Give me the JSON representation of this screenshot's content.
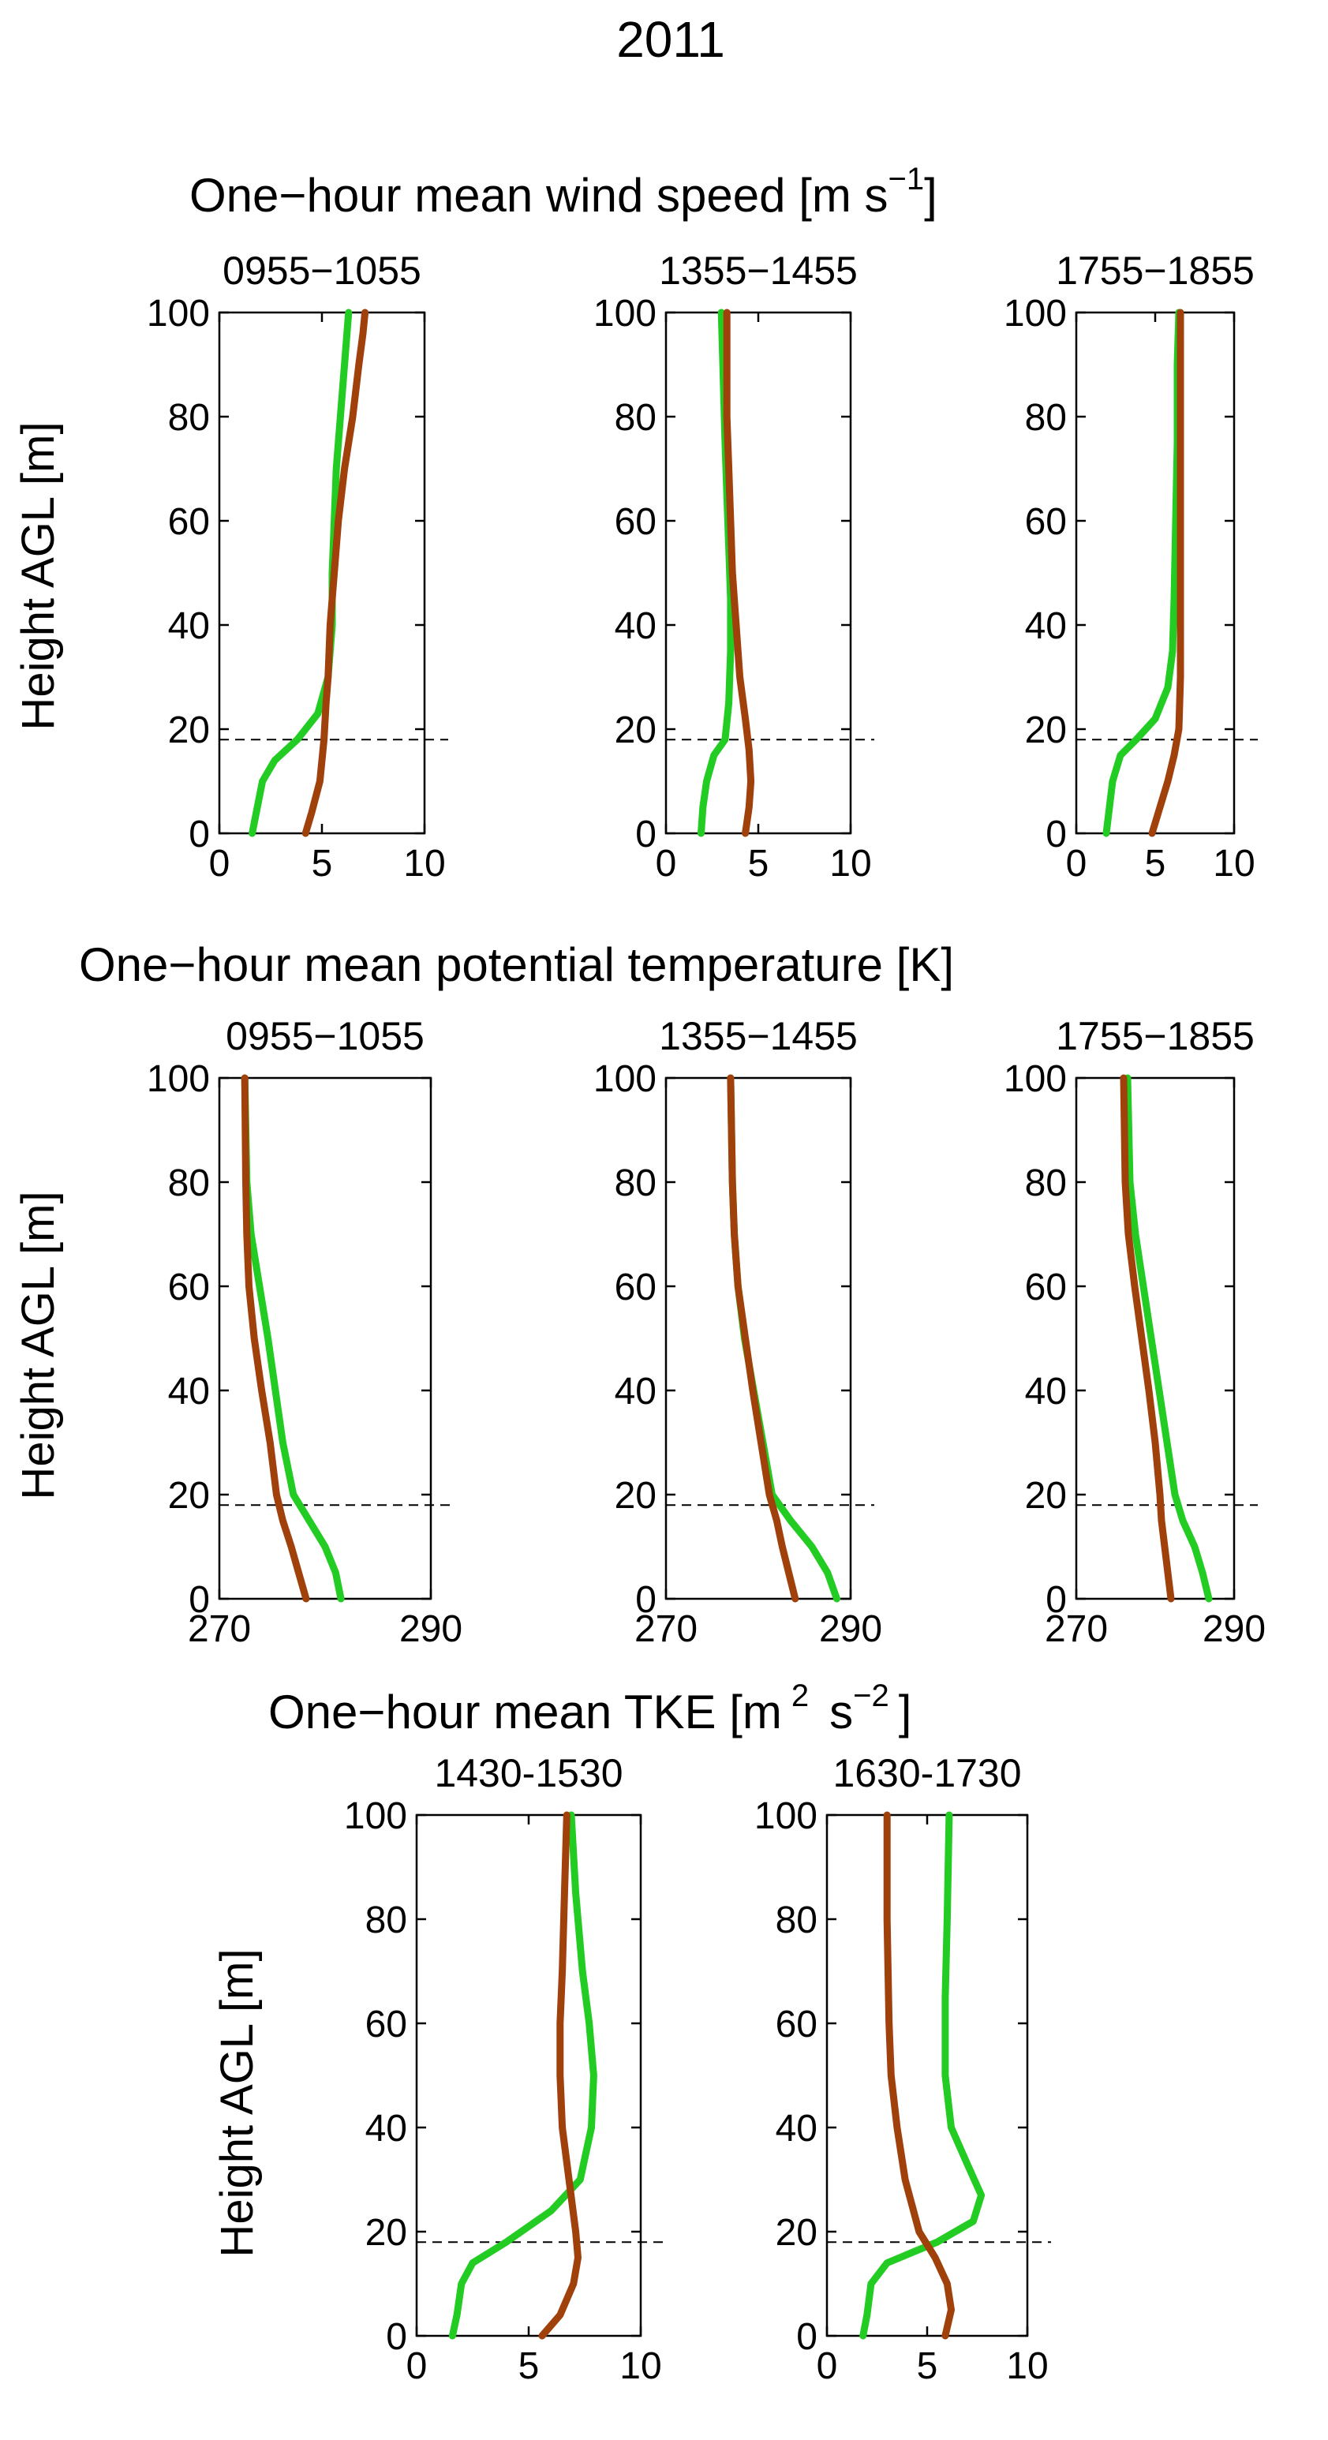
{
  "figure_title": "2011",
  "rows": [
    {
      "title": "One−hour mean wind speed",
      "unit_base": "[m s",
      "unit_exp": "−1",
      "unit_close": "]"
    },
    {
      "title": "One−hour mean potential temperature [K]"
    },
    {
      "title": "One−hour mean TKE",
      "unit_base": "[m",
      "unit_exp1": "2",
      "unit_mid": "s",
      "unit_exp2": "−2",
      "unit_close": "]"
    }
  ],
  "ylabel": "Height AGL [m]",
  "colors": {
    "green": "#22cc22",
    "brown": "#a0400a",
    "axis": "#000000",
    "ref_line": "#000000"
  },
  "chart_data": [
    {
      "type": "line",
      "row": 0,
      "title": "0955−1055",
      "xlim": [
        0,
        10
      ],
      "ylim": [
        0,
        100
      ],
      "xticks": [
        0,
        5,
        10
      ],
      "yticks": [
        0,
        20,
        40,
        60,
        80,
        100
      ],
      "xlabel": "",
      "ylabel": "Height AGL [m]",
      "ref_y": 18,
      "series": [
        {
          "name": "green",
          "color": "#22cc22",
          "x": [
            1.6,
            1.8,
            2.1,
            2.7,
            3.8,
            4.8,
            5.3,
            5.5,
            5.5,
            5.6,
            5.7,
            5.9,
            6.1,
            6.3
          ],
          "y": [
            0,
            4,
            10,
            14,
            18,
            23,
            30,
            40,
            50,
            60,
            70,
            80,
            90,
            100
          ]
        },
        {
          "name": "brown",
          "color": "#a0400a",
          "x": [
            4.2,
            4.5,
            4.9,
            5.1,
            5.2,
            5.3,
            5.4,
            5.6,
            5.8,
            6.1,
            6.5,
            6.8,
            7.0,
            7.1
          ],
          "y": [
            0,
            4,
            10,
            18,
            25,
            30,
            40,
            50,
            60,
            70,
            80,
            90,
            96,
            100
          ]
        }
      ]
    },
    {
      "type": "line",
      "row": 0,
      "title": "1355−1455",
      "xlim": [
        0,
        10
      ],
      "ylim": [
        0,
        100
      ],
      "xticks": [
        0,
        5,
        10
      ],
      "yticks": [
        0,
        20,
        40,
        60,
        80,
        100
      ],
      "xlabel": "",
      "ylabel": "",
      "ref_y": 18,
      "series": [
        {
          "name": "green",
          "color": "#22cc22",
          "x": [
            1.9,
            2.0,
            2.2,
            2.6,
            3.2,
            3.4,
            3.5,
            3.5,
            3.4,
            3.3,
            3.2,
            3.1,
            3.0
          ],
          "y": [
            0,
            5,
            10,
            15,
            18,
            25,
            35,
            45,
            55,
            65,
            75,
            88,
            100
          ]
        },
        {
          "name": "brown",
          "color": "#a0400a",
          "x": [
            4.3,
            4.5,
            4.6,
            4.5,
            4.3,
            4.0,
            3.8,
            3.6,
            3.5,
            3.4,
            3.3,
            3.3,
            3.3
          ],
          "y": [
            0,
            5,
            10,
            16,
            22,
            30,
            40,
            50,
            60,
            70,
            80,
            90,
            100
          ]
        }
      ]
    },
    {
      "type": "line",
      "row": 0,
      "title": "1755−1855",
      "xlim": [
        0,
        10
      ],
      "ylim": [
        0,
        100
      ],
      "xticks": [
        0,
        5,
        10
      ],
      "yticks": [
        0,
        20,
        40,
        60,
        80,
        100
      ],
      "xlabel": "",
      "ylabel": "",
      "ref_y": 18,
      "series": [
        {
          "name": "green",
          "color": "#22cc22",
          "x": [
            1.9,
            2.1,
            2.3,
            2.8,
            3.8,
            5.0,
            5.8,
            6.1,
            6.2,
            6.3,
            6.4,
            6.4,
            6.5
          ],
          "y": [
            0,
            5,
            10,
            15,
            18,
            22,
            28,
            35,
            45,
            60,
            75,
            90,
            100
          ]
        },
        {
          "name": "brown",
          "color": "#a0400a",
          "x": [
            4.8,
            5.3,
            5.8,
            6.2,
            6.5,
            6.6,
            6.6,
            6.6,
            6.6,
            6.6,
            6.6,
            6.6
          ],
          "y": [
            0,
            5,
            10,
            15,
            20,
            30,
            40,
            50,
            60,
            70,
            85,
            100
          ]
        }
      ]
    },
    {
      "type": "line",
      "row": 1,
      "title": "0955−1055",
      "xlim": [
        270,
        290
      ],
      "ylim": [
        0,
        100
      ],
      "xticks": [
        270,
        290
      ],
      "yticks": [
        0,
        20,
        40,
        60,
        80,
        100
      ],
      "xlabel": "",
      "ylabel": "Height AGL [m]",
      "ref_y": 18,
      "series": [
        {
          "name": "green",
          "color": "#22cc22",
          "x": [
            281.5,
            281.0,
            280.0,
            278.5,
            277.0,
            276.0,
            275.3,
            274.6,
            273.8,
            273.0,
            272.6,
            272.5,
            272.4
          ],
          "y": [
            0,
            5,
            10,
            15,
            20,
            30,
            40,
            50,
            60,
            70,
            80,
            90,
            100
          ]
        },
        {
          "name": "brown",
          "color": "#a0400a",
          "x": [
            278.2,
            277.5,
            276.8,
            276.0,
            275.4,
            274.8,
            274.0,
            273.3,
            272.8,
            272.6,
            272.5,
            272.4
          ],
          "y": [
            0,
            5,
            10,
            15,
            20,
            30,
            40,
            50,
            60,
            70,
            80,
            100
          ]
        }
      ]
    },
    {
      "type": "line",
      "row": 1,
      "title": "1355−1455",
      "xlim": [
        270,
        290
      ],
      "ylim": [
        0,
        100
      ],
      "xticks": [
        270,
        290
      ],
      "yticks": [
        0,
        20,
        40,
        60,
        80,
        100
      ],
      "xlabel": "",
      "ylabel": "",
      "ref_y": 18,
      "series": [
        {
          "name": "green",
          "color": "#22cc22",
          "x": [
            288.5,
            287.5,
            285.8,
            283.5,
            281.5,
            280.5,
            279.5,
            278.5,
            277.8,
            277.4,
            277.2,
            277.0
          ],
          "y": [
            0,
            5,
            10,
            15,
            20,
            30,
            40,
            50,
            60,
            70,
            80,
            100
          ]
        },
        {
          "name": "brown",
          "color": "#a0400a",
          "x": [
            284.0,
            283.3,
            282.6,
            282.0,
            281.2,
            280.3,
            279.4,
            278.6,
            277.8,
            277.4,
            277.2,
            277.0
          ],
          "y": [
            0,
            5,
            10,
            15,
            20,
            30,
            40,
            50,
            60,
            70,
            80,
            100
          ]
        }
      ]
    },
    {
      "type": "line",
      "row": 1,
      "title": "1755−1855",
      "xlim": [
        270,
        290
      ],
      "ylim": [
        0,
        100
      ],
      "xticks": [
        270,
        290
      ],
      "yticks": [
        0,
        20,
        40,
        60,
        80,
        100
      ],
      "xlabel": "",
      "ylabel": "",
      "ref_y": 18,
      "series": [
        {
          "name": "green",
          "color": "#22cc22",
          "x": [
            286.8,
            286.0,
            285.0,
            283.5,
            282.5,
            281.5,
            280.5,
            279.5,
            278.5,
            277.5,
            276.8,
            276.5
          ],
          "y": [
            0,
            5,
            10,
            15,
            20,
            30,
            40,
            50,
            60,
            70,
            80,
            100
          ]
        },
        {
          "name": "brown",
          "color": "#a0400a",
          "x": [
            282.0,
            281.6,
            281.2,
            280.8,
            280.6,
            280.0,
            279.2,
            278.3,
            277.4,
            276.6,
            276.2,
            276.0
          ],
          "y": [
            0,
            5,
            10,
            15,
            20,
            30,
            40,
            50,
            60,
            70,
            80,
            100
          ]
        }
      ]
    },
    {
      "type": "line",
      "row": 2,
      "title": "1430-1530",
      "xlim": [
        0,
        10
      ],
      "ylim": [
        0,
        100
      ],
      "xticks": [
        0,
        5,
        10
      ],
      "yticks": [
        0,
        20,
        40,
        60,
        80,
        100
      ],
      "xlabel": "",
      "ylabel": "Height AGL [m]",
      "ref_y": 18,
      "series": [
        {
          "name": "green",
          "color": "#22cc22",
          "x": [
            1.6,
            1.8,
            2.0,
            2.5,
            4.0,
            6.0,
            7.3,
            7.8,
            7.9,
            7.7,
            7.4,
            7.1,
            6.9
          ],
          "y": [
            0,
            4,
            10,
            14,
            18,
            24,
            30,
            40,
            50,
            60,
            70,
            85,
            100
          ]
        },
        {
          "name": "brown",
          "color": "#a0400a",
          "x": [
            5.6,
            6.4,
            7.0,
            7.2,
            7.1,
            6.8,
            6.5,
            6.4,
            6.4,
            6.5,
            6.6,
            6.7
          ],
          "y": [
            0,
            4,
            10,
            15,
            20,
            30,
            40,
            50,
            60,
            70,
            85,
            100
          ]
        }
      ]
    },
    {
      "type": "line",
      "row": 2,
      "title": "1630-1730",
      "xlim": [
        0,
        10
      ],
      "ylim": [
        0,
        100
      ],
      "xticks": [
        0,
        5,
        10
      ],
      "yticks": [
        0,
        20,
        40,
        60,
        80,
        100
      ],
      "xlabel": "",
      "ylabel": "",
      "ref_y": 18,
      "series": [
        {
          "name": "green",
          "color": "#22cc22",
          "x": [
            1.8,
            2.0,
            2.2,
            3.0,
            5.5,
            7.3,
            7.7,
            7.0,
            6.2,
            5.9,
            5.9,
            6.0,
            6.1
          ],
          "y": [
            0,
            4,
            10,
            14,
            18,
            22,
            27,
            33,
            40,
            50,
            65,
            80,
            100
          ]
        },
        {
          "name": "brown",
          "color": "#a0400a",
          "x": [
            5.9,
            6.2,
            6.0,
            5.4,
            4.6,
            3.9,
            3.5,
            3.2,
            3.1,
            3.0,
            3.0
          ],
          "y": [
            0,
            5,
            10,
            15,
            20,
            30,
            40,
            50,
            60,
            80,
            100
          ]
        }
      ]
    }
  ]
}
